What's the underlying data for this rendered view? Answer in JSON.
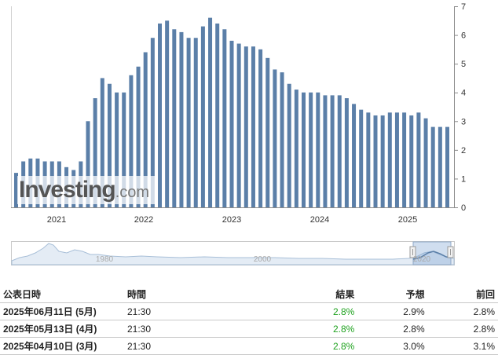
{
  "chart_data": {
    "type": "bar",
    "y_ticks": [
      "0",
      "1",
      "2",
      "3",
      "4",
      "5",
      "6",
      "7"
    ],
    "ylim": [
      0,
      7
    ],
    "x_tick_labels": [
      "2021",
      "2022",
      "2023",
      "2024",
      "2025"
    ],
    "color": "#5b7fa8",
    "values": [
      1.2,
      1.6,
      1.7,
      1.7,
      1.6,
      1.6,
      1.6,
      1.4,
      1.3,
      1.6,
      3.0,
      3.8,
      4.5,
      4.3,
      4.0,
      4.0,
      4.6,
      4.9,
      5.4,
      5.9,
      6.4,
      6.5,
      6.2,
      6.1,
      5.9,
      5.9,
      6.3,
      6.6,
      6.4,
      6.2,
      5.8,
      5.7,
      5.6,
      5.6,
      5.5,
      5.2,
      4.8,
      4.7,
      4.3,
      4.1,
      4.0,
      4.0,
      4.0,
      3.9,
      3.9,
      3.9,
      3.8,
      3.6,
      3.4,
      3.3,
      3.2,
      3.2,
      3.3,
      3.3,
      3.3,
      3.2,
      3.3,
      3.1,
      2.8,
      2.8,
      2.8
    ]
  },
  "navigator": {
    "labels": [
      "1980",
      "2000",
      "2020"
    ]
  },
  "logo": {
    "main": "Investing",
    "suffix": ".com"
  },
  "table": {
    "headers": {
      "date": "公表日時",
      "time": "時間",
      "actual": "結果",
      "forecast": "予想",
      "previous": "前回"
    },
    "rows": [
      {
        "date": "2025年06月11日 (5月)",
        "time": "21:30",
        "actual": "2.8%",
        "forecast": "2.9%",
        "previous": "2.8%"
      },
      {
        "date": "2025年05月13日 (4月)",
        "time": "21:30",
        "actual": "2.8%",
        "forecast": "2.8%",
        "previous": "2.8%"
      },
      {
        "date": "2025年04月10日 (3月)",
        "time": "21:30",
        "actual": "2.8%",
        "forecast": "3.0%",
        "previous": "3.1%"
      }
    ]
  }
}
